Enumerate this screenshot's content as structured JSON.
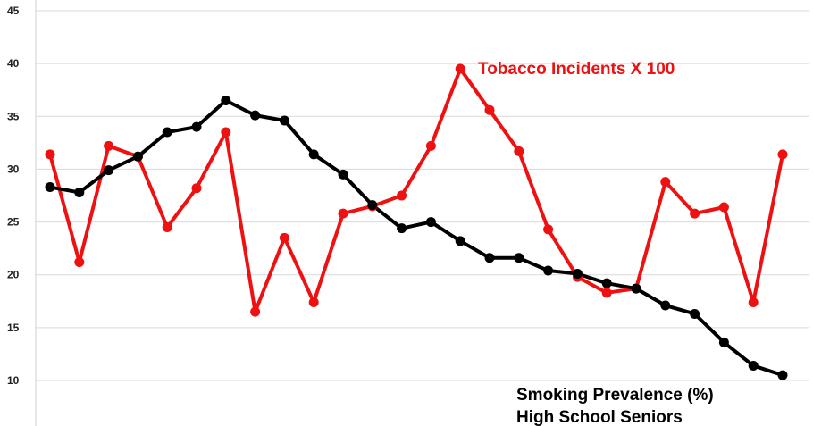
{
  "chart_data": {
    "type": "line",
    "title": "",
    "xlabel": "",
    "ylabel": "",
    "ylim": [
      10,
      45
    ],
    "y_ticks": [
      "10",
      "15",
      "20",
      "25",
      "30",
      "35",
      "40",
      "45"
    ],
    "grid": "horizontal",
    "x": [
      1,
      2,
      3,
      4,
      5,
      6,
      7,
      8,
      9,
      10,
      11,
      12,
      13,
      14,
      15,
      16,
      17,
      18,
      19,
      20,
      21,
      22,
      23,
      24,
      25,
      26
    ],
    "series": [
      {
        "name": "Tobacco Incidents X 100",
        "color": "#ee1111",
        "values": [
          31.4,
          21.2,
          32.2,
          31.2,
          24.5,
          28.2,
          33.5,
          16.5,
          23.5,
          17.4,
          25.8,
          26.5,
          27.5,
          32.2,
          39.5,
          35.6,
          31.7,
          24.3,
          19.8,
          18.3,
          18.7,
          28.8,
          25.8,
          26.4,
          17.4,
          31.4
        ]
      },
      {
        "name": "Smoking Prevalence (%)",
        "name_line2": "High School Seniors",
        "color": "#000000",
        "values": [
          28.3,
          27.8,
          29.9,
          31.2,
          33.5,
          34.0,
          36.5,
          35.1,
          34.6,
          31.4,
          29.5,
          26.6,
          24.4,
          25.0,
          23.2,
          21.6,
          21.6,
          20.4,
          20.1,
          19.2,
          18.7,
          17.1,
          16.3,
          13.6,
          11.4,
          10.5
        ]
      }
    ]
  }
}
